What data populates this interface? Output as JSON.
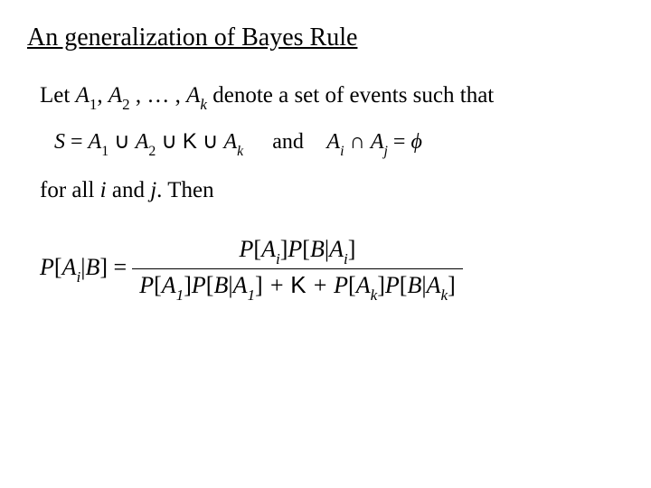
{
  "title": "An generalization of Bayes Rule",
  "line1": {
    "prefix": "Let ",
    "a": "A",
    "sep": ", ",
    "dots": " , … , ",
    "suffix": " denote a set of events such that"
  },
  "eq1": {
    "s": "S",
    "eq": " = ",
    "a": "A",
    "cup": " ∪ ",
    "kappa": "K",
    "and": "and",
    "cap": " ∩ ",
    "empty": "ϕ",
    "sub1": "1",
    "sub2": "2",
    "subk": "k",
    "subi": "i",
    "subj": "j"
  },
  "line2": {
    "prefix": "for all  ",
    "i": "i",
    "and": " and  ",
    "j": "j",
    "suffix": ". Then"
  },
  "formula": {
    "P": "P",
    "A": "A",
    "B": "B",
    "bar": "|",
    "lb": "[",
    "rb": "]",
    "eq": " = ",
    "plus": " + ",
    "kappa": "K",
    "subi": "i",
    "sub1": "1",
    "subk": "k"
  },
  "style": {
    "background_color": "#ffffff",
    "text_color": "#000000",
    "title_fontsize": 28,
    "body_fontsize": 25,
    "formula_fontsize": 26
  }
}
